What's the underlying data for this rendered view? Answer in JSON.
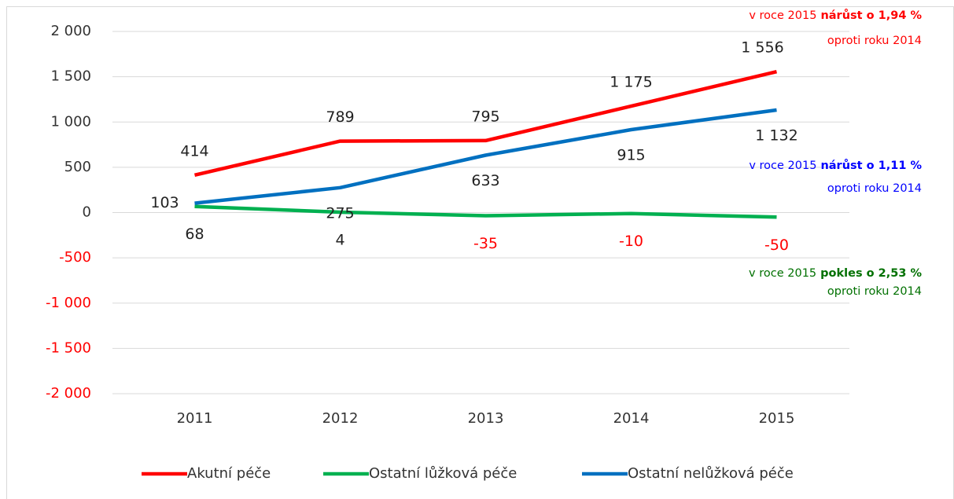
{
  "chart_data": {
    "type": "line",
    "categories": [
      "2011",
      "2012",
      "2013",
      "2014",
      "2015"
    ],
    "series": [
      {
        "name": "Akutní péče",
        "color": "#ff0000",
        "values": [
          414,
          789,
          795,
          1175,
          1556
        ],
        "value_labels": [
          "414",
          "789",
          "795",
          "1 175",
          "1 556"
        ]
      },
      {
        "name": "Ostatní lůžková péče",
        "color": "#00b050",
        "values": [
          68,
          4,
          -35,
          -10,
          -50
        ],
        "value_labels": [
          "68",
          "4",
          "-35",
          "-10",
          "-50"
        ]
      },
      {
        "name": "Ostatní nelůžková péče",
        "color": "#0070c0",
        "values": [
          103,
          275,
          633,
          915,
          1132
        ],
        "value_labels": [
          "103",
          "275",
          "633",
          "915",
          "1 132"
        ]
      }
    ],
    "ylim": [
      -2000,
      2000
    ],
    "yticks": [
      {
        "value": -2000,
        "label": "-2 000"
      },
      {
        "value": -1500,
        "label": "-1 500"
      },
      {
        "value": -1000,
        "label": "-1 000"
      },
      -500,
      0,
      500,
      {
        "value": 1000,
        "label": "1 000"
      },
      {
        "value": 1500,
        "label": "1 500"
      },
      {
        "value": 2000,
        "label": "2 000"
      }
    ],
    "grid": true,
    "legend": "bottom",
    "annotations": [
      {
        "text": "v roce 2015",
        "emphasis": "nárůst o 1,94 %",
        "text2": "oproti roku 2014",
        "color": "#ff0000"
      },
      {
        "text": "v roce 2015",
        "emphasis": "nárůst o 1,11 %",
        "text2": "oproti roku 2014",
        "color": "#0000ff"
      },
      {
        "text": "v roce 2015",
        "emphasis": "pokles o 2,53 %",
        "text2": "oproti roku 2014",
        "color": "#007000"
      }
    ]
  }
}
